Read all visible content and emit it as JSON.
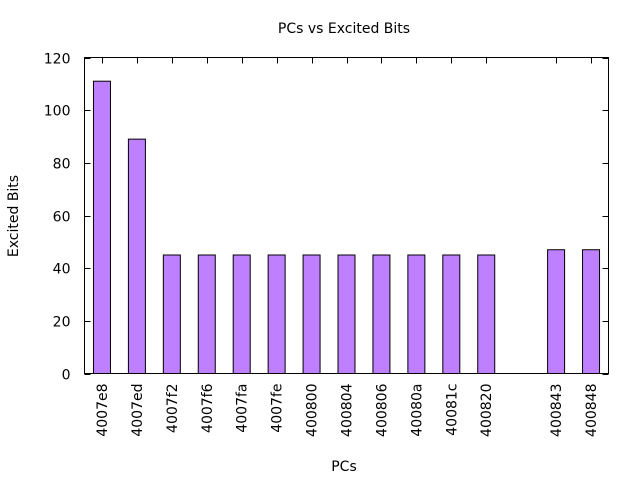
{
  "chart_data": {
    "type": "bar",
    "title": "PCs vs Excited Bits",
    "xlabel": "PCs",
    "ylabel": "Excited Bits",
    "ylim": [
      0,
      120
    ],
    "yticks": [
      0,
      20,
      40,
      60,
      80,
      100,
      120
    ],
    "grid": false,
    "legend": "none",
    "bar_color": "#bf80ff",
    "bar_edge_color": "#000000",
    "slot_count": 15,
    "bars": [
      {
        "slot": 0,
        "category": "4007e8",
        "value": 111
      },
      {
        "slot": 1,
        "category": "4007ed",
        "value": 89
      },
      {
        "slot": 2,
        "category": "4007f2",
        "value": 45
      },
      {
        "slot": 3,
        "category": "4007f6",
        "value": 45
      },
      {
        "slot": 4,
        "category": "4007fa",
        "value": 45
      },
      {
        "slot": 5,
        "category": "4007fe",
        "value": 45
      },
      {
        "slot": 6,
        "category": "400800",
        "value": 45
      },
      {
        "slot": 7,
        "category": "400804",
        "value": 45
      },
      {
        "slot": 8,
        "category": "400806",
        "value": 45
      },
      {
        "slot": 9,
        "category": "40080a",
        "value": 45
      },
      {
        "slot": 10,
        "category": "40081c",
        "value": 45
      },
      {
        "slot": 11,
        "category": "400820",
        "value": 45
      },
      {
        "slot": 13,
        "category": "400843",
        "value": 47
      },
      {
        "slot": 14,
        "category": "400848",
        "value": 47
      }
    ]
  }
}
